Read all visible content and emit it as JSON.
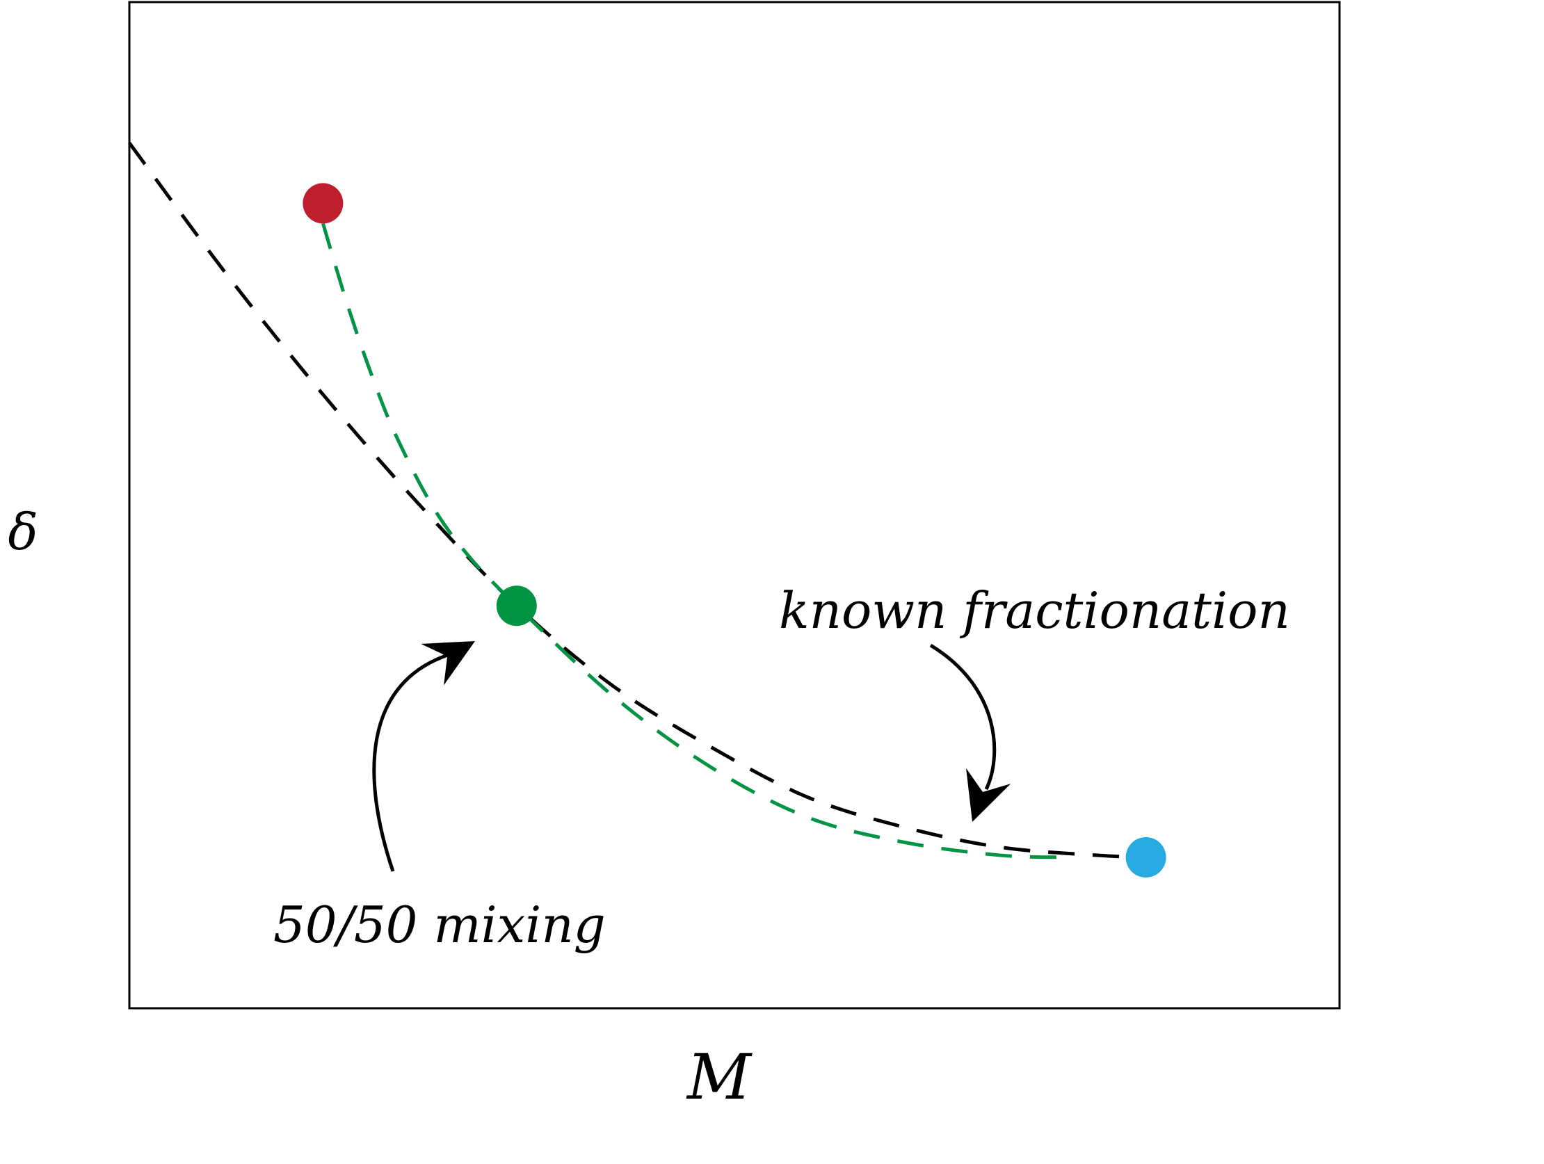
{
  "chart_data": {
    "type": "line",
    "xlabel": "M",
    "ylabel": "δ",
    "grid": false,
    "legend": "none",
    "points": [
      {
        "name": "red-endmember",
        "x": 0.16,
        "y": 0.8,
        "color": "#be1e2d"
      },
      {
        "name": "mixture",
        "x": 0.32,
        "y": 0.4,
        "color": "#009444"
      },
      {
        "name": "blue-endmember",
        "x": 0.84,
        "y": 0.15,
        "color": "#27aae1"
      }
    ],
    "series": [
      {
        "id": "fractionation-curve",
        "color": "#000000",
        "dashed": true,
        "x": [
          0.0,
          0.08,
          0.16,
          0.24,
          0.32,
          0.4,
          0.48,
          0.56,
          0.64,
          0.72,
          0.8,
          0.84
        ],
        "y": [
          0.86,
          0.73,
          0.61,
          0.5,
          0.4,
          0.32,
          0.26,
          0.21,
          0.18,
          0.16,
          0.152,
          0.15
        ]
      },
      {
        "id": "mixing-curve",
        "color": "#009444",
        "dashed": true,
        "x": [
          0.16,
          0.18,
          0.2,
          0.22,
          0.25,
          0.28,
          0.32,
          0.4,
          0.48,
          0.56,
          0.64,
          0.72,
          0.78
        ],
        "y": [
          0.78,
          0.7,
          0.63,
          0.57,
          0.5,
          0.45,
          0.4,
          0.31,
          0.24,
          0.19,
          0.165,
          0.152,
          0.15
        ]
      }
    ],
    "annotations": [
      {
        "id": "mixing-label",
        "text": "50/50 mixing"
      },
      {
        "id": "fractionation-label",
        "text": "known fractionation"
      }
    ],
    "xlim": [
      0,
      1
    ],
    "ylim": [
      0,
      1
    ]
  }
}
